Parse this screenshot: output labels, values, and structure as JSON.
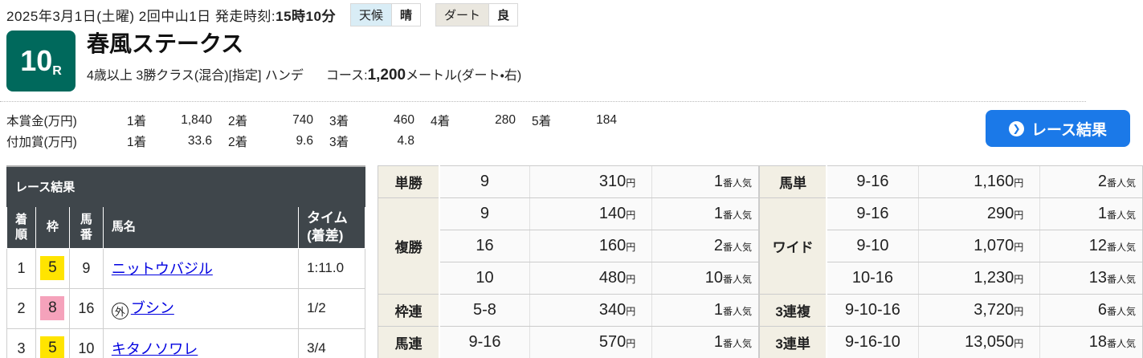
{
  "topbar": {
    "date_info": "2025年3月1日(土曜) 2回中山1日 発走時刻:",
    "start_time": "15時10分",
    "weather_label": "天候",
    "weather_value": "晴",
    "track_label": "ダート",
    "track_value": "良"
  },
  "race": {
    "number": "10",
    "r_suffix": "R",
    "name": "春風ステークス",
    "conditions": "4歳以上 3勝クラス(混合)[指定] ハンデ",
    "course_label": "コース:",
    "course_distance": "1,200",
    "course_detail": "メートル(ダート・右)"
  },
  "prizes": {
    "main": {
      "label": "本賞金(万円)",
      "items": [
        {
          "place": "1着",
          "amount": "1,840"
        },
        {
          "place": "2着",
          "amount": "740"
        },
        {
          "place": "3着",
          "amount": "460"
        },
        {
          "place": "4着",
          "amount": "280"
        },
        {
          "place": "5着",
          "amount": "184"
        }
      ]
    },
    "additional": {
      "label": "付加賞(万円)",
      "items": [
        {
          "place": "1着",
          "amount": "33.6"
        },
        {
          "place": "2着",
          "amount": "9.6"
        },
        {
          "place": "3着",
          "amount": "4.8"
        }
      ]
    }
  },
  "result_button": {
    "label": "レース結果",
    "icon": "❯"
  },
  "results": {
    "title": "レース結果",
    "headers": {
      "rank": "着\n順",
      "frame": "枠",
      "number": "馬\n番",
      "name": "馬名",
      "time": "タイム\n(着差)"
    },
    "rows": [
      {
        "rank": "1",
        "frame": "5",
        "frame_color": "#ffe400",
        "number": "9",
        "mark": "",
        "name": "ニットウバジル",
        "time": "1:11.0"
      },
      {
        "rank": "2",
        "frame": "8",
        "frame_color": "#f5a2bb",
        "number": "16",
        "mark": "外",
        "name": "ブシン",
        "time": "1/2"
      },
      {
        "rank": "3",
        "frame": "5",
        "frame_color": "#ffe400",
        "number": "10",
        "mark": "",
        "name": "キタノソワレ",
        "time": "3/4"
      }
    ]
  },
  "labels": {
    "yen": "円",
    "ninki_suffix": "番人気"
  },
  "payouts": {
    "left": [
      {
        "label": "単勝",
        "rows": [
          {
            "combo": "9",
            "amount": "310",
            "ninki": "1"
          }
        ]
      },
      {
        "label": "複勝",
        "rows": [
          {
            "combo": "9",
            "amount": "140",
            "ninki": "1"
          },
          {
            "combo": "16",
            "amount": "160",
            "ninki": "2"
          },
          {
            "combo": "10",
            "amount": "480",
            "ninki": "10"
          }
        ]
      },
      {
        "label": "枠連",
        "rows": [
          {
            "combo": "5-8",
            "amount": "340",
            "ninki": "1"
          }
        ]
      },
      {
        "label": "馬連",
        "rows": [
          {
            "combo": "9-16",
            "amount": "570",
            "ninki": "1"
          }
        ]
      }
    ],
    "right": [
      {
        "label": "馬単",
        "rows": [
          {
            "combo": "9-16",
            "amount": "1,160",
            "ninki": "2"
          }
        ]
      },
      {
        "label": "ワイド",
        "rows": [
          {
            "combo": "9-16",
            "amount": "290",
            "ninki": "1"
          },
          {
            "combo": "9-10",
            "amount": "1,070",
            "ninki": "12"
          },
          {
            "combo": "10-16",
            "amount": "1,230",
            "ninki": "13"
          }
        ]
      },
      {
        "label": "3連複",
        "rows": [
          {
            "combo": "9-10-16",
            "amount": "3,720",
            "ninki": "6"
          }
        ]
      },
      {
        "label": "3連単",
        "rows": [
          {
            "combo": "9-16-10",
            "amount": "13,050",
            "ninki": "18"
          }
        ]
      }
    ]
  },
  "colors": {
    "race_badge": "#00695c",
    "button_blue": "#1b79e8",
    "table_header_dark": "#3f464b",
    "payout_label_bg": "#f2efe4",
    "weather_label_bg": "#d9edf6",
    "track_label_bg": "#eae7df",
    "frame_5_yellow": "#ffe400",
    "frame_8_pink": "#f5a2bb",
    "link_blue": "#0000e0"
  }
}
